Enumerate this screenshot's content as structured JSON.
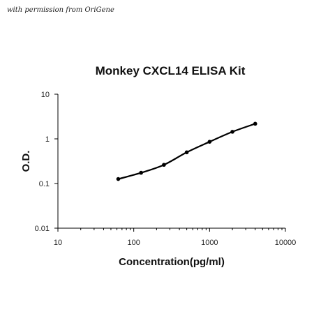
{
  "watermark": "with permission from OriGene",
  "chart_data": {
    "type": "scatter",
    "title": "Monkey CXCL14 ELISA Kit",
    "xlabel": "Concentration(pg/ml)",
    "ylabel": "O.D.",
    "xscale": "log",
    "yscale": "log",
    "xlim": [
      10,
      10000
    ],
    "ylim": [
      0.01,
      10
    ],
    "x_ticks": [
      "10",
      "100",
      "1000",
      "10000"
    ],
    "y_ticks": [
      "0.01",
      "0.1",
      "1",
      "10"
    ],
    "grid": false,
    "legend": "none",
    "series": [
      {
        "x": [
          62.5,
          125,
          250,
          500,
          1000,
          2000,
          4000
        ],
        "y": [
          0.126,
          0.174,
          0.262,
          0.5,
          0.86,
          1.44,
          2.18
        ]
      }
    ],
    "colors": {
      "line": "#000000",
      "marker": "#000000",
      "axis": "#000000"
    }
  }
}
